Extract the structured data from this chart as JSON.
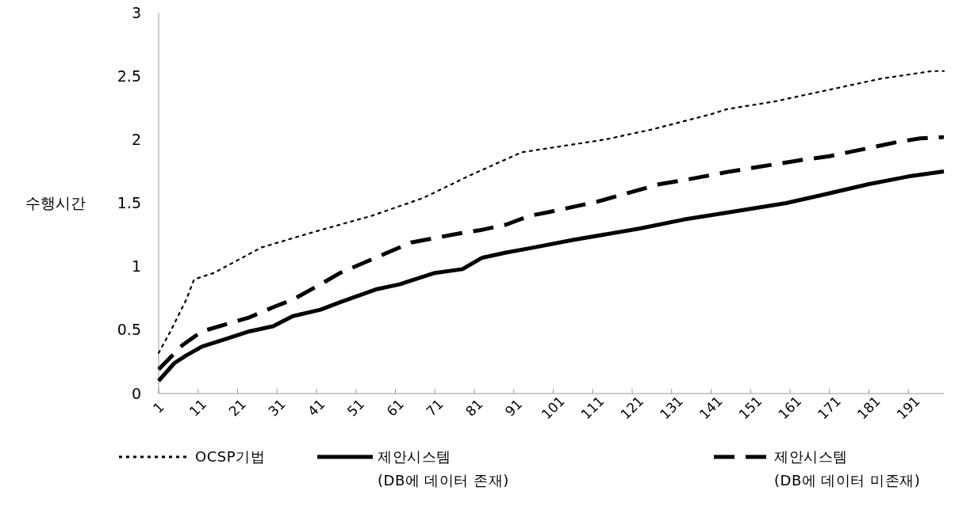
{
  "chart_data": {
    "type": "line",
    "ylabel": "수행시간",
    "xlim": [
      1,
      200
    ],
    "xticks": [
      1,
      11,
      21,
      31,
      41,
      51,
      61,
      71,
      81,
      91,
      101,
      111,
      121,
      131,
      141,
      151,
      161,
      171,
      181,
      191
    ],
    "ylim": [
      0,
      3
    ],
    "yticks": [
      0,
      0.5,
      1,
      1.5,
      2,
      2.5,
      3
    ],
    "grid": false,
    "legend": "bottom",
    "marker": "none",
    "series": [
      {
        "name": "OCSP기법",
        "color": "#000000",
        "line_style": "dotted",
        "x": [
          1,
          4,
          8,
          10,
          15,
          21,
          27,
          40,
          55,
          68,
          80,
          93,
          95,
          114,
          126,
          141,
          145,
          157,
          169,
          184,
          197,
          200
        ],
        "values": [
          0.32,
          0.49,
          0.74,
          0.9,
          0.95,
          1.05,
          1.15,
          1.27,
          1.4,
          1.54,
          1.72,
          1.9,
          1.91,
          2.0,
          2.08,
          2.2,
          2.24,
          2.3,
          2.38,
          2.48,
          2.54,
          2.54
        ]
      },
      {
        "name": "제안시스템\n(DB에 데이터 존재)",
        "color": "#000000",
        "line_style": "solid",
        "x": [
          1,
          5,
          8,
          12,
          18,
          24,
          30,
          35,
          42,
          47,
          56,
          62,
          71,
          78,
          83,
          89,
          96,
          106,
          123,
          134,
          146,
          160,
          170,
          181,
          191,
          200
        ],
        "values": [
          0.1,
          0.24,
          0.3,
          0.37,
          0.43,
          0.49,
          0.53,
          0.61,
          0.66,
          0.72,
          0.82,
          0.86,
          0.95,
          0.98,
          1.07,
          1.11,
          1.15,
          1.21,
          1.3,
          1.37,
          1.43,
          1.5,
          1.57,
          1.65,
          1.71,
          1.75
        ]
      },
      {
        "name": "제안시스템\n(DB에 데이터 미존재)",
        "color": "#000000",
        "line_style": "dashed",
        "x": [
          1,
          7,
          12,
          24,
          30,
          35,
          42,
          47,
          59,
          65,
          77,
          83,
          89,
          95,
          100,
          112,
          128,
          134,
          146,
          164,
          171,
          182,
          188,
          194,
          200
        ],
        "values": [
          0.19,
          0.38,
          0.49,
          0.6,
          0.68,
          0.74,
          0.86,
          0.95,
          1.11,
          1.19,
          1.26,
          1.29,
          1.33,
          1.4,
          1.43,
          1.51,
          1.65,
          1.68,
          1.75,
          1.84,
          1.87,
          1.94,
          1.98,
          2.01,
          2.02
        ]
      }
    ]
  }
}
